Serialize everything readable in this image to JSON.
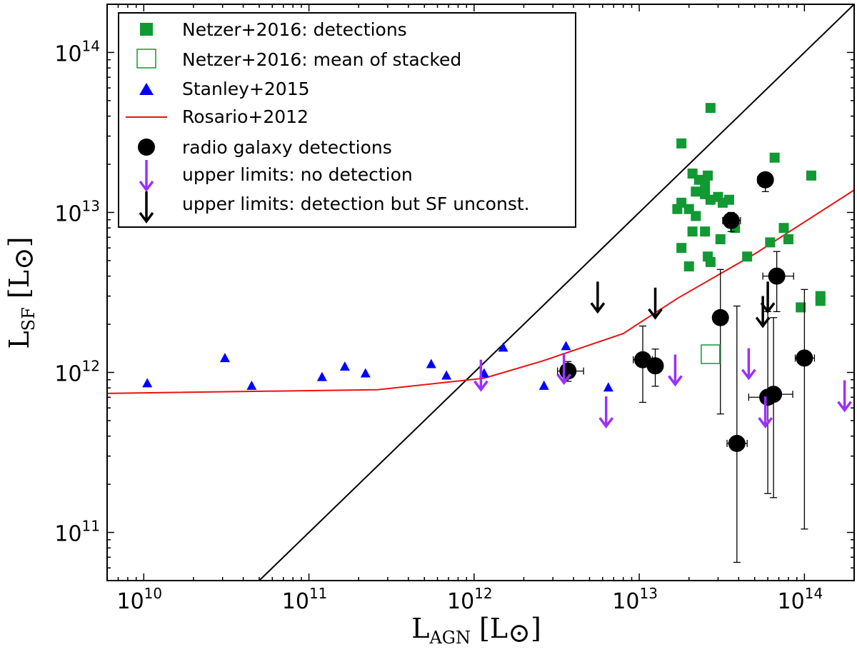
{
  "chart_data": {
    "type": "scatter",
    "x_scale": "log",
    "y_scale": "log",
    "xlim": [
      6000000000.0,
      200000000000000.0
    ],
    "ylim": [
      50000000000.0,
      200000000000000.0
    ],
    "xlabel": {
      "main": "L",
      "sub": "AGN",
      "unit": " [L",
      "unit_sym": "⊙",
      "unit_close": "]"
    },
    "ylabel": {
      "main": "L",
      "sub": "SF",
      "unit": " [L",
      "unit_sym": "⊙",
      "unit_close": "]"
    },
    "x_ticks": [
      {
        "value": 10000000000.0,
        "base": "10",
        "exp": "10"
      },
      {
        "value": 100000000000.0,
        "base": "10",
        "exp": "11"
      },
      {
        "value": 1000000000000.0,
        "base": "10",
        "exp": "12"
      },
      {
        "value": 10000000000000.0,
        "base": "10",
        "exp": "13"
      },
      {
        "value": 100000000000000.0,
        "base": "10",
        "exp": "14"
      }
    ],
    "y_ticks": [
      {
        "value": 100000000000.0,
        "base": "10",
        "exp": "11"
      },
      {
        "value": 1000000000000.0,
        "base": "10",
        "exp": "12"
      },
      {
        "value": 10000000000000.0,
        "base": "10",
        "exp": "13"
      },
      {
        "value": 100000000000000.0,
        "base": "10",
        "exp": "14"
      }
    ],
    "grid": false,
    "legend_position": "top-left",
    "colors": {
      "netzer": "#119933",
      "stanley": "#0000ff",
      "rosario": "#ee1111",
      "radio": "#000000",
      "upper_nodet": "#9b30ff",
      "upper_det": "#000000",
      "one_to_one": "#000000"
    },
    "series": [
      {
        "name": "Netzer+2016: detections",
        "marker": "square-filled",
        "points": [
          [
            27000000000000.0,
            45000000000000.0
          ],
          [
            18000000000000.0,
            27000000000000.0
          ],
          [
            66000000000000.0,
            22000000000000.0
          ],
          [
            110000000000000.0,
            17000000000000.0
          ],
          [
            21000000000000.0,
            17500000000000.0
          ],
          [
            26000000000000.0,
            17000000000000.0
          ],
          [
            23000000000000.0,
            16000000000000.0
          ],
          [
            25000000000000.0,
            15000000000000.0
          ],
          [
            22000000000000.0,
            13500000000000.0
          ],
          [
            25000000000000.0,
            13000000000000.0
          ],
          [
            30000000000000.0,
            12500000000000.0
          ],
          [
            35000000000000.0,
            12000000000000.0
          ],
          [
            27000000000000.0,
            12000000000000.0
          ],
          [
            32000000000000.0,
            11500000000000.0
          ],
          [
            18000000000000.0,
            11500000000000.0
          ],
          [
            20000000000000.0,
            10500000000000.0
          ],
          [
            17000000000000.0,
            10500000000000.0
          ],
          [
            22000000000000.0,
            9500000000000.0
          ],
          [
            38000000000000.0,
            8000000000000.0
          ],
          [
            75000000000000.0,
            8000000000000.0
          ],
          [
            21000000000000.0,
            7600000000000.0
          ],
          [
            25000000000000.0,
            7600000000000.0
          ],
          [
            31000000000000.0,
            6800000000000.0
          ],
          [
            80000000000000.0,
            6800000000000.0
          ],
          [
            62000000000000.0,
            6500000000000.0
          ],
          [
            18000000000000.0,
            6000000000000.0
          ],
          [
            45000000000000.0,
            5300000000000.0
          ],
          [
            26000000000000.0,
            5300000000000.0
          ],
          [
            27000000000000.0,
            4900000000000.0
          ],
          [
            20000000000000.0,
            4600000000000.0
          ],
          [
            125000000000000.0,
            3000000000000.0
          ],
          [
            125000000000000.0,
            2800000000000.0
          ],
          [
            95000000000000.0,
            2550000000000.0
          ]
        ]
      },
      {
        "name": "Netzer+2016: mean of stacked",
        "marker": "square-open",
        "points": [
          [
            27000000000000.0,
            1300000000000.0
          ]
        ]
      },
      {
        "name": "Stanley+2015",
        "marker": "triangle",
        "points": [
          [
            10500000000.0,
            850000000000.0
          ],
          [
            31000000000.0,
            1220000000000.0
          ],
          [
            45000000000.0,
            820000000000.0
          ],
          [
            120000000000.0,
            930000000000.0
          ],
          [
            165000000000.0,
            1080000000000.0
          ],
          [
            220000000000.0,
            980000000000.0
          ],
          [
            550000000000.0,
            1120000000000.0
          ],
          [
            680000000000.0,
            950000000000.0
          ],
          [
            1150000000000.0,
            980000000000.0
          ],
          [
            1500000000000.0,
            1420000000000.0
          ],
          [
            2650000000000.0,
            820000000000.0
          ],
          [
            3600000000000.0,
            1450000000000.0
          ],
          [
            6500000000000.0,
            800000000000.0
          ]
        ]
      },
      {
        "name": "Rosario+2012",
        "marker": "line",
        "points": [
          [
            6000000000.0,
            740000000000.0
          ],
          [
            260000000000.0,
            780000000000.0
          ],
          [
            1150000000000.0,
            920000000000.0
          ],
          [
            2600000000000.0,
            1180000000000.0
          ],
          [
            8000000000000.0,
            1750000000000.0
          ],
          [
            17000000000000.0,
            2900000000000.0
          ],
          [
            50000000000000.0,
            5500000000000.0
          ],
          [
            200000000000000.0,
            13800000000000.0
          ]
        ]
      },
      {
        "name": "radio galaxy detections",
        "marker": "circle",
        "points": [
          {
            "x": 58000000000000.0,
            "y": 16000000000000.0,
            "xerr": [
              52000000000000.0,
              64000000000000.0
            ],
            "yerr": [
              13500000000000.0,
              17500000000000.0
            ]
          },
          {
            "x": 36000000000000.0,
            "y": 8900000000000.0,
            "xerr": [
              32000000000000.0,
              41000000000000.0
            ],
            "yerr": [
              7600000000000.0,
              10000000000000.0
            ]
          },
          {
            "x": 68000000000000.0,
            "y": 4000000000000.0,
            "xerr": [
              56000000000000.0,
              86000000000000.0
            ],
            "yerr": [
              2400000000000.0,
              5700000000000.0
            ]
          },
          {
            "x": 31000000000000.0,
            "y": 2200000000000.0,
            "xerr": [
              28000000000000.0,
              34000000000000.0
            ],
            "yerr": [
              550000000000.0,
              4400000000000.0
            ]
          },
          {
            "x": 100000000000000.0,
            "y": 1230000000000.0,
            "xerr": [
              88000000000000.0,
              115000000000000.0
            ],
            "yerr": [
              105000000000.0,
              3300000000000.0
            ]
          },
          {
            "x": 10500000000000.0,
            "y": 1200000000000.0,
            "xerr": [
              9200000000000.0,
              12000000000000.0
            ],
            "yerr": [
              650000000000.0,
              1950000000000.0
            ]
          },
          {
            "x": 12500000000000.0,
            "y": 1100000000000.0,
            "xerr": [
              11500000000000.0,
              13500000000000.0
            ],
            "yerr": [
              820000000000.0,
              1400000000000.0
            ]
          },
          {
            "x": 3700000000000.0,
            "y": 1020000000000.0,
            "xerr": [
              3200000000000.0,
              4600000000000.0
            ],
            "yerr": [
              880000000000.0,
              1170000000000.0
            ]
          },
          {
            "x": 60000000000000.0,
            "y": 700000000000.0,
            "xerr": [
              46000000000000.0,
              67000000000000.0
            ],
            "yerr": [
              175000000000.0,
              2400000000000.0
            ]
          },
          {
            "x": 65000000000000.0,
            "y": 730000000000.0,
            "xerr": [
              58000000000000.0,
              85000000000000.0
            ],
            "yerr": [
              165000000000.0,
              2200000000000.0
            ]
          },
          {
            "x": 39000000000000.0,
            "y": 360000000000.0,
            "xerr": [
              34000000000000.0,
              45000000000000.0
            ],
            "yerr": [
              65000000000.0,
              2600000000000.0
            ]
          }
        ]
      },
      {
        "name": "upper limits: no detection",
        "marker": "arrow-down",
        "points": [
          [
            1100000000000.0,
            780000000000.0
          ],
          [
            3500000000000.0,
            860000000000.0
          ],
          [
            6300000000000.0,
            460000000000.0
          ],
          [
            16500000000000.0,
            840000000000.0
          ],
          [
            46000000000000.0,
            920000000000.0
          ],
          [
            58000000000000.0,
            460000000000.0
          ],
          [
            175000000000000.0,
            580000000000.0
          ]
        ]
      },
      {
        "name": "upper limits: detection but SF unconst.",
        "marker": "arrow-down",
        "points": [
          [
            5600000000000.0,
            2400000000000.0
          ],
          [
            12500000000000.0,
            2200000000000.0
          ],
          [
            56000000000000.0,
            1950000000000.0
          ],
          [
            60000000000000.0,
            2400000000000.0
          ]
        ]
      }
    ],
    "one_to_one": {
      "points": [
        [
          50000000000.0,
          50000000000.0
        ],
        [
          200000000000000.0,
          200000000000000.0
        ]
      ]
    }
  }
}
